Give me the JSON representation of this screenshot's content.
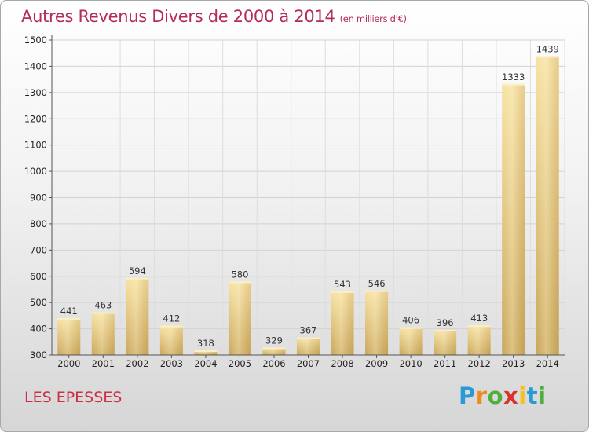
{
  "header": {
    "title": "Autres Revenus Divers de 2000 à 2014",
    "subtitle": "(en milliers d'€)"
  },
  "footer": {
    "place": "LES EPESSES",
    "logo": [
      "P",
      "r",
      "o",
      "x",
      "i",
      "t",
      "i"
    ],
    "logo_colors": [
      "#2a9ad6",
      "#f08a1c",
      "#4fae3c",
      "#d8332c",
      "#f4c21a",
      "#2a9ad6",
      "#4fae3c"
    ]
  },
  "chart_data": {
    "type": "bar",
    "categories": [
      "2000",
      "2001",
      "2002",
      "2003",
      "2004",
      "2005",
      "2006",
      "2007",
      "2008",
      "2009",
      "2010",
      "2011",
      "2012",
      "2013",
      "2014"
    ],
    "values": [
      441,
      463,
      594,
      412,
      318,
      580,
      329,
      367,
      543,
      546,
      406,
      396,
      413,
      1333,
      1439
    ],
    "data_labels": [
      "441",
      "463",
      "594",
      "412",
      "318",
      "580",
      "329",
      "367",
      "543",
      "546",
      "406",
      "396",
      "413",
      "1333",
      "1439"
    ],
    "ylim": [
      300,
      1500
    ],
    "yticks": [
      300,
      400,
      500,
      600,
      700,
      800,
      900,
      1000,
      1100,
      1200,
      1300,
      1400,
      1500
    ],
    "ytick_labels": [
      "300",
      "400",
      "500",
      "600",
      "700",
      "800",
      "900",
      "1000",
      "1100",
      "1200",
      "1300",
      "1400",
      "1500"
    ],
    "grid": true,
    "bar_color": "#e8c878"
  }
}
